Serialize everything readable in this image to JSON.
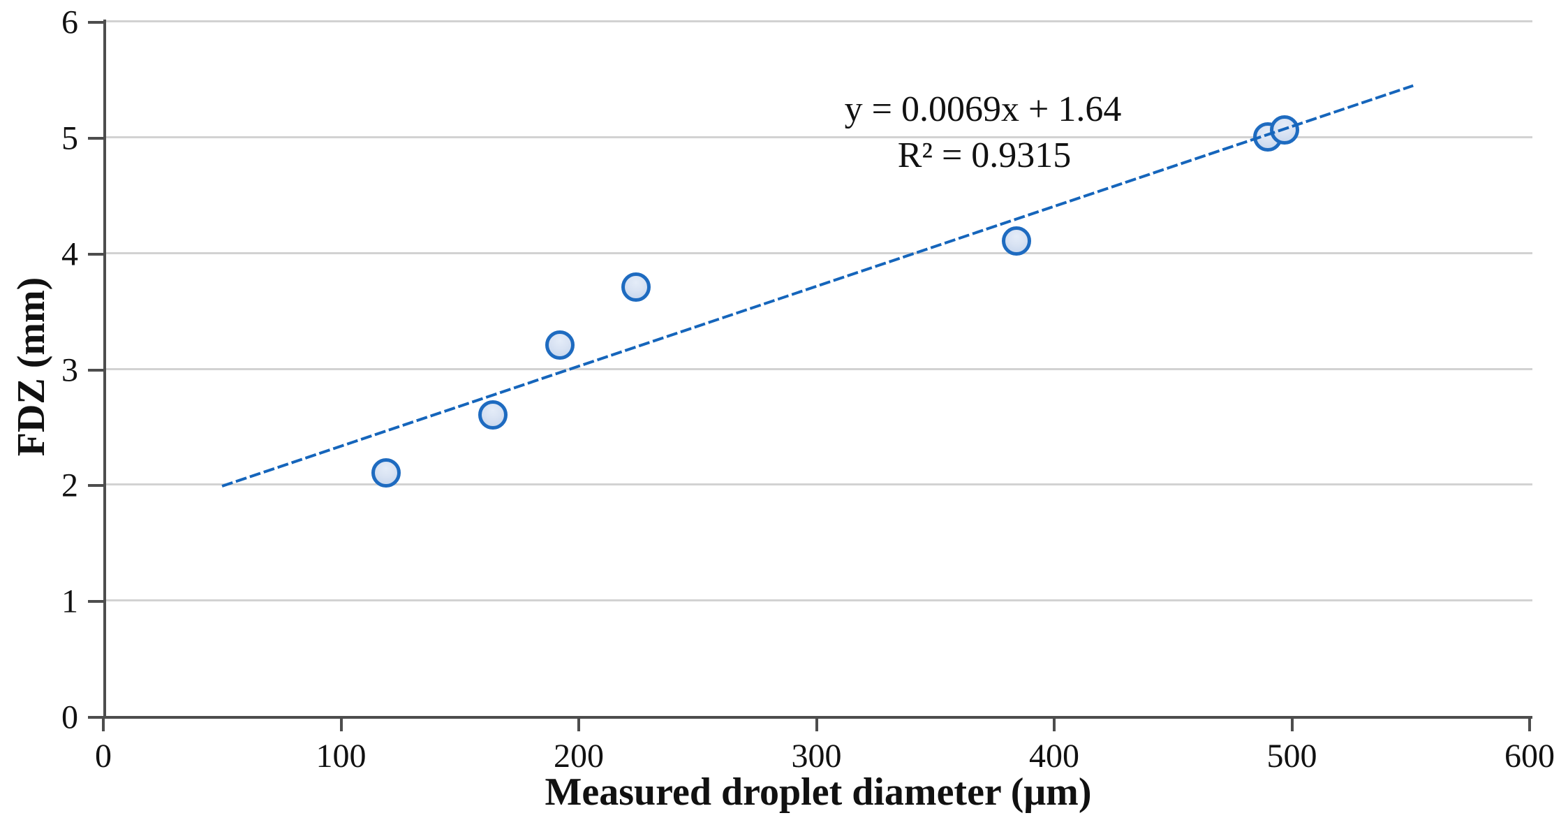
{
  "chart_data": {
    "type": "scatter",
    "title": "",
    "xlabel": "Measured droplet diameter (μm)",
    "ylabel": "FDZ (mm)",
    "xlim": [
      0,
      600
    ],
    "ylim": [
      0,
      6
    ],
    "x_ticks": [
      0,
      100,
      200,
      300,
      400,
      500,
      600
    ],
    "y_ticks": [
      0,
      1,
      2,
      3,
      4,
      5,
      6
    ],
    "grid": "horizontal-major-gridlines",
    "legend": "none",
    "points": [
      {
        "x": 119,
        "y": 2.1
      },
      {
        "x": 164,
        "y": 2.6
      },
      {
        "x": 192,
        "y": 3.2
      },
      {
        "x": 224,
        "y": 3.7
      },
      {
        "x": 384,
        "y": 4.1
      },
      {
        "x": 490,
        "y": 5.0
      },
      {
        "x": 497,
        "y": 5.06
      }
    ],
    "trendline": {
      "slope": 0.0069,
      "intercept": 1.64,
      "x_start": 50,
      "x_end": 551,
      "equation_label": "y = 0.0069x + 1.64",
      "r_squared_label": "R² = 0.9315"
    },
    "colors": {
      "marker_fill": "#d9e3f3",
      "marker_fill_edge": "#c3d4ec",
      "marker_border": "#1e6bc0",
      "trendline": "#1565bb",
      "gridline": "#d2d2d2",
      "axis": "#4d4d4d",
      "text": "#111111"
    }
  }
}
